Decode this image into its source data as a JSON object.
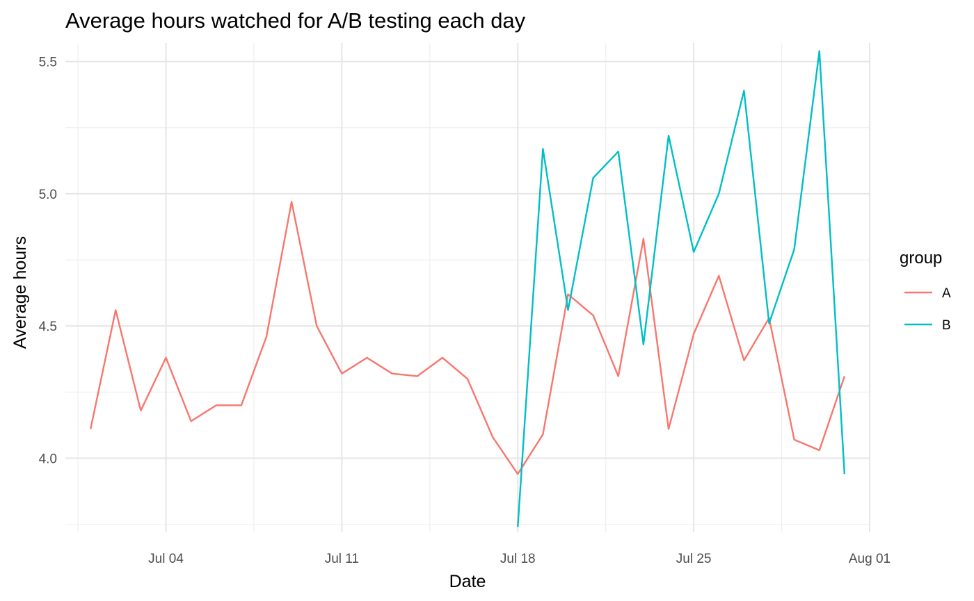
{
  "chart_data": {
    "type": "line",
    "title": "Average hours watched for A/B testing each day",
    "xlabel": "Date",
    "ylabel": "Average hours",
    "x_axis_type": "date",
    "x_tick_labels": [
      "Jul 04",
      "Jul 11",
      "Jul 18",
      "Jul 25",
      "Aug 01"
    ],
    "x_tick_dates": [
      "2021-07-04",
      "2021-07-11",
      "2021-07-18",
      "2021-07-25",
      "2021-08-01"
    ],
    "xlim": [
      "2021-06-30",
      "2021-08-01"
    ],
    "y_tick_labels": [
      "4.0",
      "4.5",
      "5.0",
      "5.5"
    ],
    "y_ticks": [
      4.0,
      4.5,
      5.0,
      5.5
    ],
    "ylim": [
      3.72,
      5.57
    ],
    "grid": true,
    "legend": {
      "title": "group",
      "position": "right"
    },
    "series": [
      {
        "name": "A",
        "color": "#F8766D",
        "x": [
          "2021-07-01",
          "2021-07-02",
          "2021-07-03",
          "2021-07-04",
          "2021-07-05",
          "2021-07-06",
          "2021-07-07",
          "2021-07-08",
          "2021-07-09",
          "2021-07-10",
          "2021-07-11",
          "2021-07-12",
          "2021-07-13",
          "2021-07-14",
          "2021-07-15",
          "2021-07-16",
          "2021-07-17",
          "2021-07-18",
          "2021-07-19",
          "2021-07-20",
          "2021-07-21",
          "2021-07-22",
          "2021-07-23",
          "2021-07-24",
          "2021-07-25",
          "2021-07-26",
          "2021-07-27",
          "2021-07-28",
          "2021-07-29",
          "2021-07-30",
          "2021-07-31"
        ],
        "values": [
          4.11,
          4.56,
          4.18,
          4.38,
          4.14,
          4.2,
          4.2,
          4.46,
          4.97,
          4.5,
          4.32,
          4.38,
          4.32,
          4.31,
          4.38,
          4.3,
          4.08,
          3.94,
          4.09,
          4.62,
          4.54,
          4.31,
          4.83,
          4.11,
          4.47,
          4.69,
          4.37,
          4.53,
          4.07,
          4.03,
          4.31
        ]
      },
      {
        "name": "B",
        "color": "#00BFC4",
        "x": [
          "2021-07-18",
          "2021-07-19",
          "2021-07-20",
          "2021-07-21",
          "2021-07-22",
          "2021-07-23",
          "2021-07-24",
          "2021-07-25",
          "2021-07-26",
          "2021-07-27",
          "2021-07-28",
          "2021-07-29",
          "2021-07-30",
          "2021-07-31"
        ],
        "values": [
          3.74,
          5.17,
          4.56,
          5.06,
          5.16,
          4.43,
          5.22,
          4.78,
          5.0,
          5.39,
          4.51,
          4.79,
          5.54,
          3.94
        ]
      }
    ]
  }
}
